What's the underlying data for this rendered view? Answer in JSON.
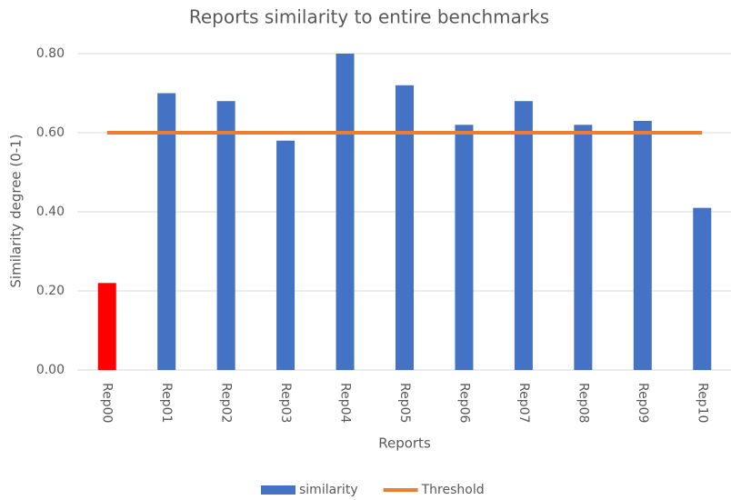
{
  "chart_data": {
    "type": "bar",
    "title": "Reports similarity to entire benchmarks",
    "x_label": "Reports",
    "y_label": "Similarity degree (0-1)",
    "categories": [
      "Rep00",
      "Rep01",
      "Rep02",
      "Rep03",
      "Rep04",
      "Rep05",
      "Rep06",
      "Rep07",
      "Rep08",
      "Rep09",
      "Rep10"
    ],
    "series": [
      {
        "name": "similarity",
        "type": "bar",
        "color": "#4472c4",
        "point_colors": [
          "#ff0000",
          "#4472c4",
          "#4472c4",
          "#4472c4",
          "#4472c4",
          "#4472c4",
          "#4472c4",
          "#4472c4",
          "#4472c4",
          "#4472c4",
          "#4472c4"
        ],
        "values": [
          0.22,
          0.7,
          0.68,
          0.58,
          0.8,
          0.72,
          0.62,
          0.68,
          0.62,
          0.63,
          0.41
        ]
      },
      {
        "name": "Threshold",
        "type": "line",
        "color": "#ed7d31",
        "values": [
          0.6,
          0.6,
          0.6,
          0.6,
          0.6,
          0.6,
          0.6,
          0.6,
          0.6,
          0.6,
          0.6
        ]
      }
    ],
    "ylim": [
      0,
      0.8
    ],
    "yticks": [
      {
        "value": 0,
        "label": "0.00"
      },
      {
        "value": 0.2,
        "label": "0.20"
      },
      {
        "value": 0.4,
        "label": "0.40"
      },
      {
        "value": 0.6,
        "label": "0.60"
      },
      {
        "value": 0.8,
        "label": "0.80"
      }
    ],
    "grid": true,
    "legend": "bottom"
  }
}
